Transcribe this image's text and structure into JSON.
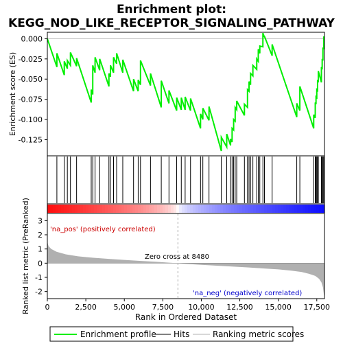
{
  "chart_data": {
    "type": "line",
    "title_line1": "Enrichment plot:",
    "title_line2": "KEGG_NOD_LIKE_RECEPTOR_SIGNALING_PATHWAY",
    "top_ylabel": "Enrichment score (ES)",
    "bottom_ylabel": "Ranked list metric (PreRanked)",
    "xlabel": "Rank in Ordered Dataset",
    "xlim": [
      0,
      18000
    ],
    "top_ylim": [
      -0.145,
      0.008
    ],
    "bottom_ylim": [
      -2.5,
      3.5
    ],
    "x_ticks": [
      0,
      2500,
      5000,
      7500,
      10000,
      12500,
      15000,
      17500
    ],
    "x_tick_labels": [
      "0",
      "2,500",
      "5,000",
      "7,500",
      "10,000",
      "12,500",
      "15,000",
      "17,500"
    ],
    "top_y_ticks": [
      0.0,
      -0.025,
      -0.05,
      -0.075,
      -0.1,
      -0.125
    ],
    "top_y_tick_labels": [
      "0.000",
      "-0.025",
      "-0.050",
      "-0.075",
      "-0.100",
      "-0.125"
    ],
    "bottom_y_ticks": [
      3,
      2,
      1,
      0,
      -1,
      -2
    ],
    "bottom_y_tick_labels": [
      "3",
      "2",
      "1",
      "0",
      "-1",
      "-2"
    ],
    "zero_cross_label": "Zero cross at 8480",
    "zero_cross_rank": 8480,
    "pos_label": "'na_pos' (positively correlated)",
    "neg_label": "'na_neg' (negatively correlated)",
    "legend": {
      "enrichment_profile": "Enrichment profile",
      "hits": "Hits",
      "ranking_metric": "Ranking metric scores"
    },
    "colors": {
      "profile": "#00ee00",
      "hits": "#000000",
      "metric_fill": "#b0b0b0",
      "pos_strong": "#ff0000",
      "neg_strong": "#0000ee"
    },
    "hit_ranks": [
      620,
      1100,
      1300,
      1500,
      1900,
      2850,
      2950,
      3100,
      3400,
      4000,
      4100,
      4300,
      4500,
      4900,
      5600,
      5900,
      6050,
      6700,
      7400,
      7900,
      8400,
      8700,
      8950,
      9300,
      9950,
      10100,
      10500,
      11300,
      11650,
      11900,
      12000,
      12100,
      12200,
      12300,
      12800,
      13000,
      13100,
      13200,
      13350,
      13600,
      13700,
      13800,
      14000,
      14100,
      14600,
      16200,
      16400,
      17300,
      17400,
      17450,
      17500,
      17550,
      17600,
      17800,
      17850,
      17900,
      17950
    ],
    "es_profile": [
      [
        0,
        0.0
      ],
      [
        620,
        -0.035
      ],
      [
        621,
        -0.018
      ],
      [
        1100,
        -0.045
      ],
      [
        1101,
        -0.028
      ],
      [
        1300,
        -0.037
      ],
      [
        1301,
        -0.027
      ],
      [
        1500,
        -0.033
      ],
      [
        1501,
        -0.017
      ],
      [
        1900,
        -0.034
      ],
      [
        1901,
        -0.024
      ],
      [
        2850,
        -0.079
      ],
      [
        2851,
        -0.063
      ],
      [
        2950,
        -0.069
      ],
      [
        2951,
        -0.033
      ],
      [
        3100,
        -0.042
      ],
      [
        3101,
        -0.023
      ],
      [
        3400,
        -0.039
      ],
      [
        3401,
        -0.025
      ],
      [
        4000,
        -0.059
      ],
      [
        4001,
        -0.043
      ],
      [
        4100,
        -0.047
      ],
      [
        4101,
        -0.033
      ],
      [
        4300,
        -0.042
      ],
      [
        4301,
        -0.023
      ],
      [
        4500,
        -0.031
      ],
      [
        4501,
        -0.018
      ],
      [
        4900,
        -0.042
      ],
      [
        4901,
        -0.026
      ],
      [
        5600,
        -0.065
      ],
      [
        5601,
        -0.05
      ],
      [
        5900,
        -0.065
      ],
      [
        5901,
        -0.051
      ],
      [
        6050,
        -0.057
      ],
      [
        6051,
        -0.027
      ],
      [
        6700,
        -0.058
      ],
      [
        6701,
        -0.043
      ],
      [
        7400,
        -0.085
      ],
      [
        7401,
        -0.052
      ],
      [
        7900,
        -0.08
      ],
      [
        7901,
        -0.064
      ],
      [
        8400,
        -0.089
      ],
      [
        8401,
        -0.073
      ],
      [
        8700,
        -0.088
      ],
      [
        8701,
        -0.073
      ],
      [
        8950,
        -0.088
      ],
      [
        8951,
        -0.072
      ],
      [
        9300,
        -0.089
      ],
      [
        9301,
        -0.074
      ],
      [
        9950,
        -0.111
      ],
      [
        9951,
        -0.093
      ],
      [
        10100,
        -0.1
      ],
      [
        10101,
        -0.086
      ],
      [
        10500,
        -0.101
      ],
      [
        10501,
        -0.084
      ],
      [
        11300,
        -0.139
      ],
      [
        11301,
        -0.122
      ],
      [
        11650,
        -0.134
      ],
      [
        11651,
        -0.118
      ],
      [
        11900,
        -0.132
      ],
      [
        11901,
        -0.124
      ],
      [
        12000,
        -0.128
      ],
      [
        12001,
        -0.111
      ],
      [
        12100,
        -0.113
      ],
      [
        12101,
        -0.1
      ],
      [
        12200,
        -0.102
      ],
      [
        12201,
        -0.085
      ],
      [
        12300,
        -0.088
      ],
      [
        12301,
        -0.077
      ],
      [
        12800,
        -0.095
      ],
      [
        12801,
        -0.081
      ],
      [
        13000,
        -0.085
      ],
      [
        13001,
        -0.063
      ],
      [
        13100,
        -0.065
      ],
      [
        13101,
        -0.053
      ],
      [
        13200,
        -0.057
      ],
      [
        13201,
        -0.043
      ],
      [
        13350,
        -0.046
      ],
      [
        13351,
        -0.033
      ],
      [
        13600,
        -0.038
      ],
      [
        13601,
        -0.025
      ],
      [
        13700,
        -0.028
      ],
      [
        13701,
        -0.013
      ],
      [
        13800,
        -0.018
      ],
      [
        13801,
        -0.009
      ],
      [
        14000,
        -0.01
      ],
      [
        14001,
        0.007
      ],
      [
        14100,
        0.002
      ],
      [
        14101,
        0.003
      ],
      [
        14600,
        -0.021
      ],
      [
        14601,
        -0.007
      ],
      [
        16200,
        -0.097
      ],
      [
        16201,
        -0.08
      ],
      [
        16400,
        -0.089
      ],
      [
        16401,
        -0.059
      ],
      [
        17300,
        -0.111
      ],
      [
        17301,
        -0.094
      ],
      [
        17400,
        -0.098
      ],
      [
        17401,
        -0.079
      ],
      [
        17450,
        -0.081
      ],
      [
        17451,
        -0.072
      ],
      [
        17500,
        -0.073
      ],
      [
        17501,
        -0.063
      ],
      [
        17550,
        -0.064
      ],
      [
        17551,
        -0.051
      ],
      [
        17600,
        -0.054
      ],
      [
        17601,
        -0.04
      ],
      [
        17800,
        -0.054
      ],
      [
        17801,
        -0.035
      ],
      [
        17850,
        -0.038
      ],
      [
        17851,
        -0.025
      ],
      [
        17900,
        -0.027
      ],
      [
        17901,
        -0.011
      ],
      [
        17950,
        -0.013
      ],
      [
        17951,
        0.002
      ],
      [
        18000,
        0.002
      ]
    ],
    "metric_curve": [
      [
        0,
        1.5
      ],
      [
        80,
        1.2
      ],
      [
        250,
        1.0
      ],
      [
        600,
        0.8
      ],
      [
        1200,
        0.62
      ],
      [
        2000,
        0.48
      ],
      [
        3000,
        0.38
      ],
      [
        4000,
        0.3
      ],
      [
        5000,
        0.23
      ],
      [
        6000,
        0.16
      ],
      [
        7000,
        0.1
      ],
      [
        8000,
        0.03
      ],
      [
        8480,
        0.0
      ],
      [
        9000,
        -0.05
      ],
      [
        10000,
        -0.12
      ],
      [
        11000,
        -0.18
      ],
      [
        12000,
        -0.24
      ],
      [
        13000,
        -0.3
      ],
      [
        14000,
        -0.37
      ],
      [
        15000,
        -0.44
      ],
      [
        15800,
        -0.52
      ],
      [
        16500,
        -0.62
      ],
      [
        17000,
        -0.75
      ],
      [
        17400,
        -0.9
      ],
      [
        17650,
        -1.1
      ],
      [
        17800,
        -1.35
      ],
      [
        17900,
        -1.7
      ],
      [
        17960,
        -2.2
      ],
      [
        18000,
        -2.45
      ]
    ]
  }
}
